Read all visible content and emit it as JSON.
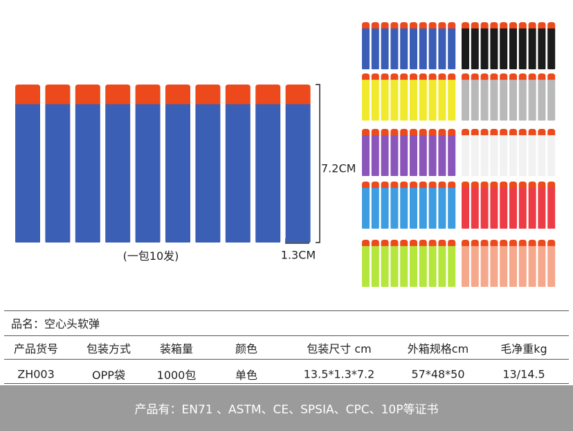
{
  "image": {
    "pack_note": "(一包10发)",
    "length_label": "7.2CM",
    "diameter_label": "1.3CM"
  },
  "product_name": "品名：空心头软弹",
  "table": {
    "headers": [
      "产品货号",
      "包装方式",
      "装箱量",
      "颜色",
      "包装尺寸 cm",
      "外箱规格cm",
      "毛净重kg"
    ],
    "rows": [
      [
        "ZH003",
        "OPP袋",
        "1000包",
        "单色",
        "13.5*1.3*7.2",
        "57*48*50",
        "13/14.5"
      ]
    ]
  },
  "footer": "产品有：EN71 、ASTM、CE、SPSIA、CPC、10P等证书"
}
